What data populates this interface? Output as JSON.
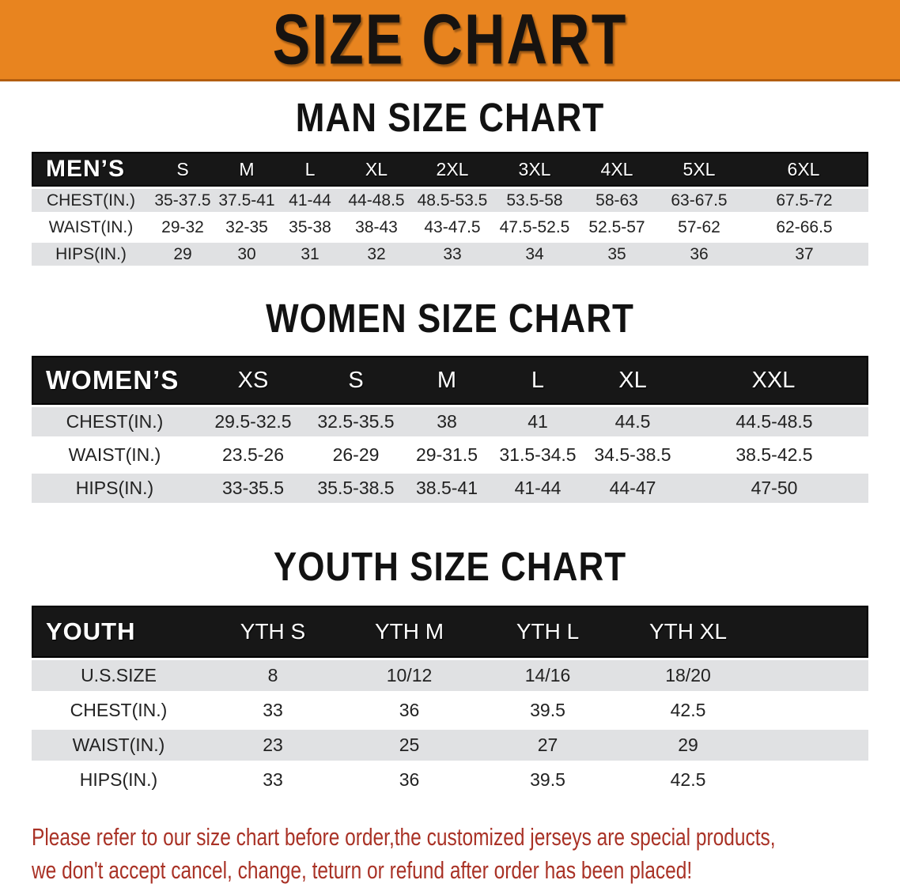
{
  "banner": {
    "title": "SIZE CHART"
  },
  "colors": {
    "banner_bg": "#E8841F",
    "banner_text": "#171310",
    "header_bar_bg": "#171717",
    "header_bar_text": "#FFFFFF",
    "stripe_gray": "#E0E1E3",
    "disclaimer_red": "#A93226"
  },
  "sections": [
    {
      "heading": "MAN SIZE CHART",
      "table": {
        "header": [
          "MEN’S",
          "S",
          "M",
          "L",
          "XL",
          "2XL",
          "3XL",
          "4XL",
          "5XL",
          "6XL"
        ],
        "rows": [
          {
            "label": "CHEST(IN.)",
            "values": [
              "35-37.5",
              "37.5-41",
              "41-44",
              "44-48.5",
              "48.5-53.5",
              "53.5-58",
              "58-63",
              "63-67.5",
              "67.5-72"
            ]
          },
          {
            "label": "WAIST(IN.)",
            "values": [
              "29-32",
              "32-35",
              "35-38",
              "38-43",
              "43-47.5",
              "47.5-52.5",
              "52.5-57",
              "57-62",
              "62-66.5"
            ]
          },
          {
            "label": "HIPS(IN.)",
            "values": [
              "29",
              "30",
              "31",
              "32",
              "33",
              "34",
              "35",
              "36",
              "37"
            ]
          }
        ]
      }
    },
    {
      "heading": "WOMEN SIZE CHART",
      "table": {
        "header": [
          "WOMEN’S",
          "XS",
          "S",
          "M",
          "L",
          "XL",
          "XXL"
        ],
        "rows": [
          {
            "label": "CHEST(IN.)",
            "values": [
              "29.5-32.5",
              "32.5-35.5",
              "38",
              "41",
              "44.5",
              "44.5-48.5"
            ]
          },
          {
            "label": "WAIST(IN.)",
            "values": [
              "23.5-26",
              "26-29",
              "29-31.5",
              "31.5-34.5",
              "34.5-38.5",
              "38.5-42.5"
            ]
          },
          {
            "label": "HIPS(IN.)",
            "values": [
              "33-35.5",
              "35.5-38.5",
              "38.5-41",
              "41-44",
              "44-47",
              "47-50"
            ]
          }
        ]
      }
    },
    {
      "heading": "YOUTH SIZE CHART",
      "table": {
        "header": [
          "YOUTH",
          "YTH S",
          "YTH M",
          "YTH L",
          "YTH XL"
        ],
        "rows": [
          {
            "label": "U.S.SIZE",
            "values": [
              "8",
              "10/12",
              "14/16",
              "18/20"
            ]
          },
          {
            "label": "CHEST(IN.)",
            "values": [
              "33",
              "36",
              "39.5",
              "42.5"
            ]
          },
          {
            "label": "WAIST(IN.)",
            "values": [
              "23",
              "25",
              "27",
              "29"
            ]
          },
          {
            "label": "HIPS(IN.)",
            "values": [
              "33",
              "36",
              "39.5",
              "42.5"
            ]
          }
        ]
      }
    }
  ],
  "disclaimer": {
    "line1": "Please refer to our size chart before order,the customized jerseys are special products,",
    "line2": "we don't accept cancel, change, teturn or refund after order has been placed!"
  }
}
